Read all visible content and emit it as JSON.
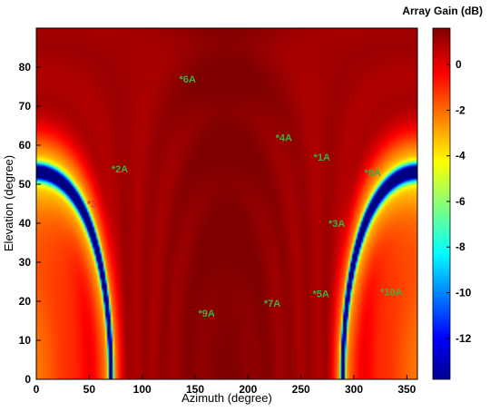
{
  "chart_data": {
    "type": "heatmap",
    "title": "",
    "xlabel": "Azimuth (degree)",
    "ylabel": "Elevation (degree)",
    "xlim": [
      0,
      360
    ],
    "ylim": [
      0,
      90
    ],
    "xticks": [
      0,
      50,
      100,
      150,
      200,
      250,
      300,
      350
    ],
    "yticks": [
      0,
      10,
      20,
      30,
      40,
      50,
      60,
      70,
      80
    ],
    "colorbar": {
      "label": "Array Gain (dB)",
      "range": [
        -13.8,
        1.6
      ],
      "ticks": [
        0,
        -2,
        -4,
        -6,
        -8,
        -10,
        -12
      ],
      "colormap": "jet",
      "placement": "right"
    },
    "markers": [
      {
        "label": "1A",
        "azimuth": 262,
        "elevation": 57,
        "color": "#3cb043"
      },
      {
        "label": "2A",
        "azimuth": 71,
        "elevation": 54,
        "color": "#3cb043"
      },
      {
        "label": "3",
        "azimuth": 48,
        "elevation": 45,
        "color": "#e8303a"
      },
      {
        "label": "3A",
        "azimuth": 276,
        "elevation": 40,
        "color": "#3cb043"
      },
      {
        "label": "4A",
        "azimuth": 226,
        "elevation": 62,
        "color": "#3cb043"
      },
      {
        "label": "5A",
        "azimuth": 261,
        "elevation": 22,
        "color": "#3cb043"
      },
      {
        "label": "6A",
        "azimuth": 135,
        "elevation": 77,
        "color": "#3cb043"
      },
      {
        "label": "7A",
        "azimuth": 215,
        "elevation": 19.5,
        "color": "#3cb043"
      },
      {
        "label": "8A",
        "azimuth": 310,
        "elevation": 53,
        "color": "#3cb043"
      },
      {
        "label": "9A",
        "azimuth": 153,
        "elevation": 17,
        "color": "#3cb043"
      },
      {
        "label": "10A",
        "azimuth": 325,
        "elevation": 22.5,
        "color": "#3cb043"
      }
    ]
  }
}
